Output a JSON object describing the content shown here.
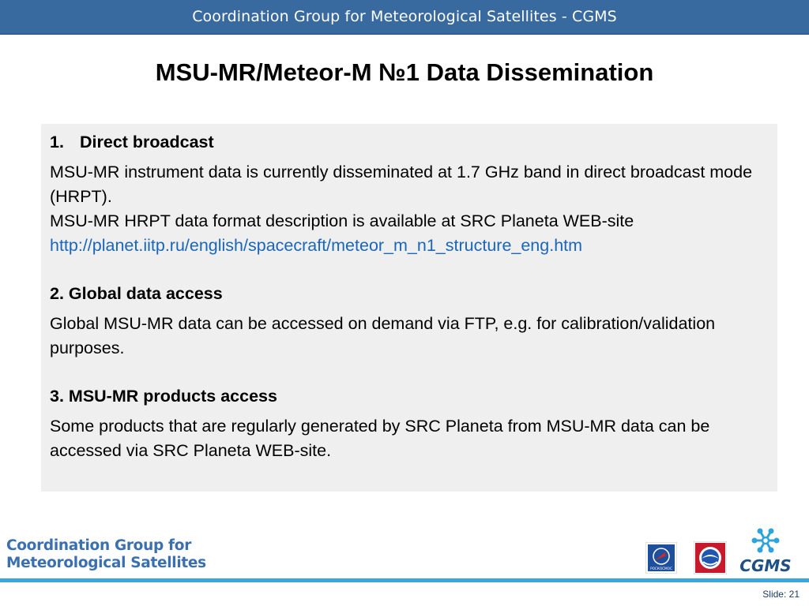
{
  "header": {
    "banner_text": "Coordination Group for Meteorological Satellites - CGMS"
  },
  "slide": {
    "title": "MSU-MR/Meteor-M №1 Data Dissemination"
  },
  "content": {
    "section1": {
      "number": "1.",
      "heading": "Direct broadcast",
      "para1": "MSU-MR instrument data is currently disseminated at 1.7 GHz band in direct broadcast mode (HRPT).",
      "para2": "MSU-MR HRPT data format description is available at SRC Planeta WEB-site",
      "link": "http://planet.iitp.ru/english/spacecraft/meteor_m_n1_structure_eng.htm"
    },
    "section2": {
      "heading": "2. Global data access",
      "para": "Global MSU-MR data can be accessed on demand via FTP, e.g. for calibration/validation purposes."
    },
    "section3": {
      "heading": "3. MSU-MR products access",
      "para": "Some products that are regularly generated by SRC Planeta from MSU-MR data can be accessed via SRC Planeta WEB-site."
    }
  },
  "footer": {
    "org_line1": "Coordination Group for",
    "org_line2": "Meteorological Satellites",
    "cgms_logo_text": "CGMS",
    "roscosmos_text": "РОСКОСМОС",
    "slide_number": "Slide: 21"
  },
  "colors": {
    "banner": "#386aa0",
    "link": "#1a66b8",
    "footer_line": "#3aa6dd",
    "org_text": "#3a6fb0"
  },
  "icons": [
    "roscosmos-logo-icon",
    "roshydromet-logo-icon",
    "cgms-logo-icon"
  ]
}
